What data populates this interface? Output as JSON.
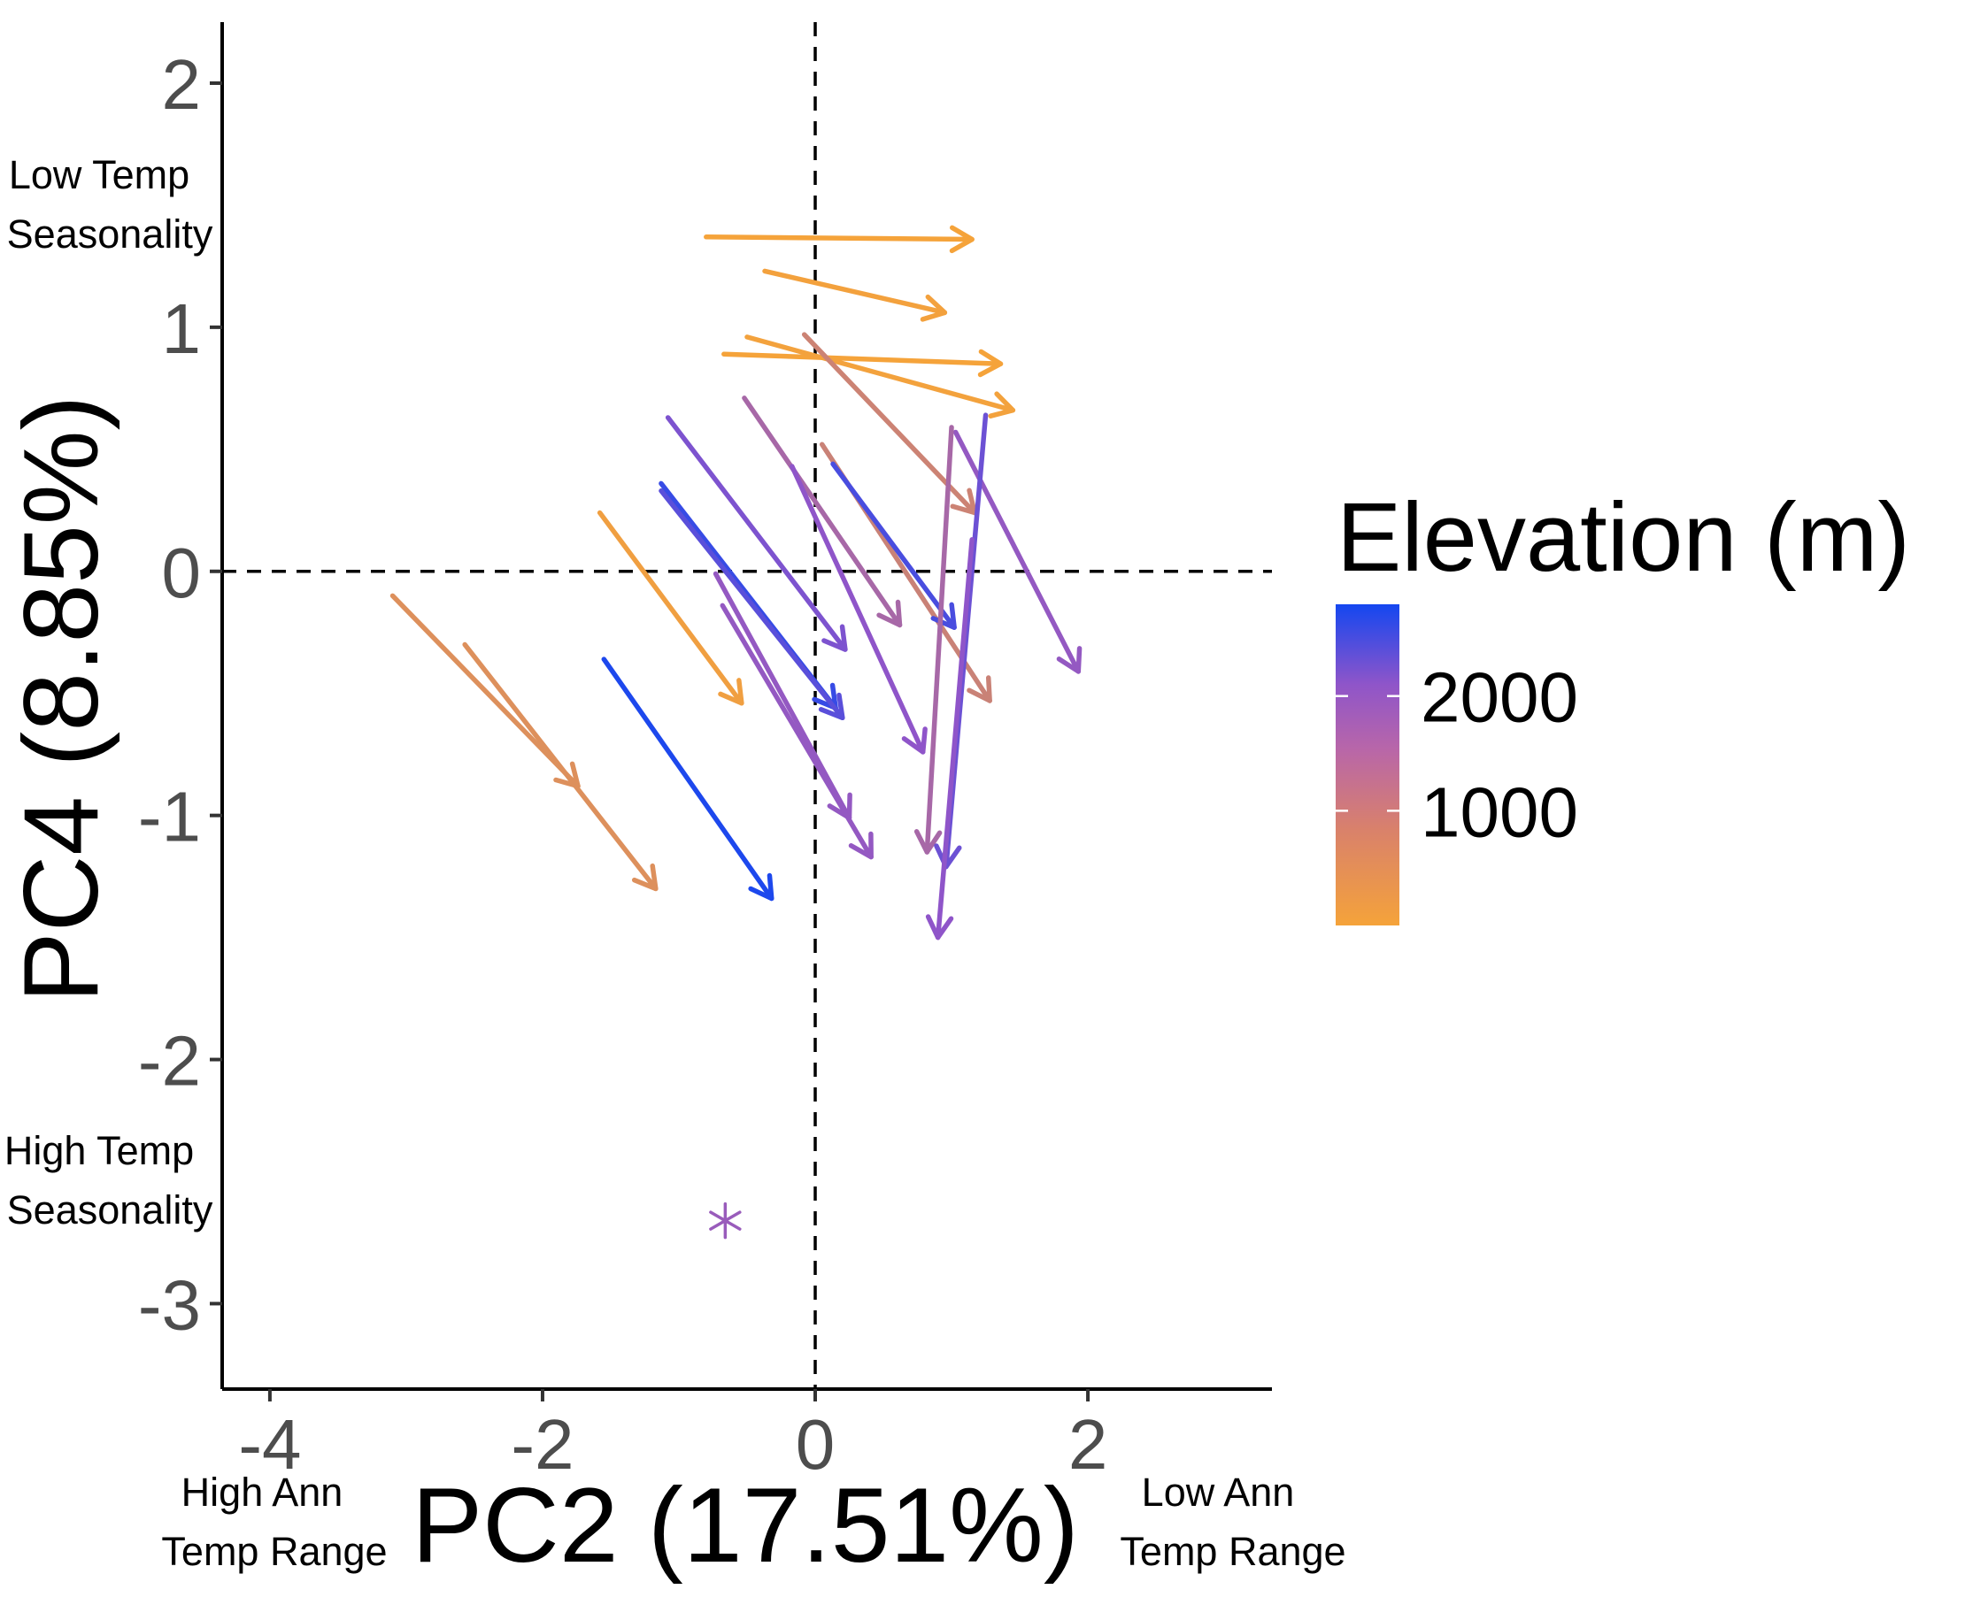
{
  "chart_data": {
    "type": "scatter",
    "subtype": "arrows",
    "title": "",
    "xlabel": "PC2 (17.51%)",
    "ylabel": "PC4 (8.85%)",
    "xlim": [
      -4.35,
      3.35
    ],
    "ylim": [
      -3.35,
      2.25
    ],
    "xticks": [
      -4,
      -2,
      0,
      2
    ],
    "yticks": [
      -3,
      -2,
      -1,
      0,
      1,
      2
    ],
    "xtick_labels": [
      "-4",
      "-2",
      "0",
      "2"
    ],
    "ytick_labels": [
      "-3",
      "-2",
      "-1",
      "0",
      "1",
      "2"
    ],
    "grid": false,
    "reference_lines": {
      "x": 0,
      "y": 0,
      "style": "dashed"
    },
    "annotations": {
      "y_top": [
        "Low Temp",
        "Seasonality"
      ],
      "y_bottom": [
        "High Temp",
        "Seasonality"
      ],
      "x_left": [
        "High Ann",
        "Temp Range"
      ],
      "x_right": [
        "Low Ann",
        "Temp Range"
      ]
    },
    "legend": {
      "title": "Elevation (m)",
      "placement": "right",
      "type": "colorbar",
      "range": [
        0,
        2800
      ],
      "ticks": [
        1000,
        2000
      ],
      "tick_labels": [
        "1000",
        "2000"
      ],
      "colors": {
        "low": "#f5a33a",
        "mid": "#8f55c9",
        "high": "#1447f0"
      }
    },
    "arrows": [
      {
        "x0": -0.8,
        "y0": 1.37,
        "x1": 1.15,
        "y1": 1.36,
        "elevation": 0
      },
      {
        "x0": -0.37,
        "y0": 1.23,
        "x1": 0.95,
        "y1": 1.06,
        "elevation": 50
      },
      {
        "x0": -0.67,
        "y0": 0.89,
        "x1": 1.36,
        "y1": 0.85,
        "elevation": 0
      },
      {
        "x0": -0.5,
        "y0": 0.96,
        "x1": 1.45,
        "y1": 0.66,
        "elevation": 40
      },
      {
        "x0": -0.08,
        "y0": 0.97,
        "x1": 1.17,
        "y1": 0.24,
        "elevation": 850
      },
      {
        "x0": 0.05,
        "y0": 0.52,
        "x1": 1.28,
        "y1": -0.53,
        "elevation": 900
      },
      {
        "x0": -0.52,
        "y0": 0.71,
        "x1": 0.62,
        "y1": -0.22,
        "elevation": 1600
      },
      {
        "x0": -0.17,
        "y0": 0.43,
        "x1": 0.79,
        "y1": -0.74,
        "elevation": 2100
      },
      {
        "x0": -1.08,
        "y0": 0.63,
        "x1": 0.22,
        "y1": -0.32,
        "elevation": 2200
      },
      {
        "x0": 0.13,
        "y0": 0.44,
        "x1": 1.02,
        "y1": -0.23,
        "elevation": 2500
      },
      {
        "x0": -1.13,
        "y0": 0.36,
        "x1": 0.15,
        "y1": -0.56,
        "elevation": 2600
      },
      {
        "x0": -1.13,
        "y0": 0.33,
        "x1": 0.2,
        "y1": -0.6,
        "elevation": 2400
      },
      {
        "x0": -1.58,
        "y0": 0.24,
        "x1": -0.54,
        "y1": -0.54,
        "elevation": 100
      },
      {
        "x0": -0.73,
        "y0": -0.01,
        "x1": 0.25,
        "y1": -1.01,
        "elevation": 2000
      },
      {
        "x0": -0.68,
        "y0": -0.14,
        "x1": 0.41,
        "y1": -1.17,
        "elevation": 2000
      },
      {
        "x0": 1.03,
        "y0": 0.57,
        "x1": 1.93,
        "y1": -0.41,
        "elevation": 2000
      },
      {
        "x0": 1.0,
        "y0": 0.59,
        "x1": 0.82,
        "y1": -1.15,
        "elevation": 1600
      },
      {
        "x0": 1.25,
        "y0": 0.64,
        "x1": 0.96,
        "y1": -1.21,
        "elevation": 2300
      },
      {
        "x0": 1.15,
        "y0": 0.13,
        "x1": 0.9,
        "y1": -1.5,
        "elevation": 2100
      },
      {
        "x0": -3.1,
        "y0": -0.1,
        "x1": -1.74,
        "y1": -0.88,
        "elevation": 500
      },
      {
        "x0": -2.57,
        "y0": -0.3,
        "x1": -1.17,
        "y1": -1.3,
        "elevation": 500
      },
      {
        "x0": -1.55,
        "y0": -0.36,
        "x1": -0.32,
        "y1": -1.34,
        "elevation": 2750
      }
    ],
    "points": [
      {
        "x": -0.66,
        "y": -2.66,
        "marker": "asterisk",
        "elevation": 1900
      }
    ]
  }
}
